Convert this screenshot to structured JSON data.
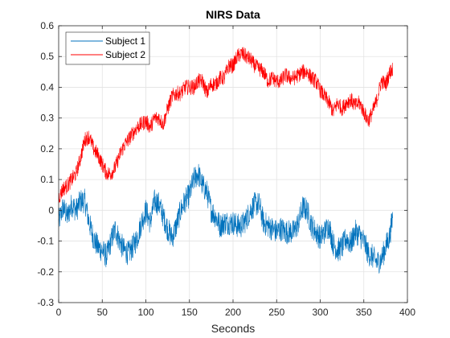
{
  "chart_data": {
    "type": "line",
    "title": "NIRS Data",
    "xlabel": "Seconds",
    "ylabel": "",
    "xlim": [
      0,
      400
    ],
    "ylim": [
      -0.3,
      0.6
    ],
    "xticks": [
      0,
      50,
      100,
      150,
      200,
      250,
      300,
      350,
      400
    ],
    "yticks": [
      -0.3,
      -0.2,
      -0.1,
      0,
      0.1,
      0.2,
      0.3,
      0.4,
      0.5,
      0.6
    ],
    "xtick_labels": [
      "0",
      "50",
      "100",
      "150",
      "200",
      "250",
      "300",
      "350",
      "400"
    ],
    "ytick_labels": [
      "-0.3",
      "-0.2",
      "-0.1",
      "0",
      "0.1",
      "0.2",
      "0.3",
      "0.4",
      "0.5",
      "0.6"
    ],
    "grid": true,
    "legend_position": "top-left",
    "series": [
      {
        "name": "Subject 1",
        "color": "#0072BD",
        "noise_amplitude": 0.04,
        "x": [
          0,
          5,
          10,
          15,
          20,
          25,
          30,
          35,
          40,
          45,
          50,
          55,
          60,
          65,
          70,
          75,
          80,
          85,
          90,
          95,
          100,
          105,
          110,
          115,
          120,
          125,
          130,
          135,
          140,
          145,
          150,
          155,
          160,
          165,
          170,
          175,
          180,
          185,
          190,
          195,
          200,
          205,
          210,
          215,
          220,
          225,
          230,
          235,
          240,
          245,
          250,
          255,
          260,
          265,
          270,
          275,
          280,
          285,
          290,
          295,
          300,
          305,
          310,
          315,
          320,
          325,
          330,
          335,
          340,
          345,
          350,
          355,
          360,
          365,
          370,
          375,
          380,
          383
        ],
        "y": [
          -0.04,
          0.01,
          -0.02,
          0.02,
          0.0,
          0.03,
          0.03,
          -0.04,
          -0.09,
          -0.12,
          -0.13,
          -0.15,
          -0.1,
          -0.06,
          -0.1,
          -0.13,
          -0.14,
          -0.12,
          -0.09,
          -0.04,
          0.0,
          -0.04,
          0.03,
          0.02,
          -0.02,
          -0.06,
          -0.09,
          -0.05,
          0.0,
          0.03,
          0.05,
          0.1,
          0.12,
          0.08,
          0.06,
          0.0,
          -0.02,
          -0.05,
          -0.04,
          -0.04,
          -0.04,
          -0.05,
          -0.05,
          -0.03,
          0.0,
          0.02,
          0.02,
          -0.04,
          -0.05,
          -0.06,
          -0.07,
          -0.06,
          -0.07,
          -0.07,
          -0.07,
          -0.04,
          0.01,
          0.0,
          -0.05,
          -0.07,
          -0.09,
          -0.07,
          -0.05,
          -0.11,
          -0.13,
          -0.12,
          -0.09,
          -0.11,
          -0.07,
          -0.08,
          -0.1,
          -0.14,
          -0.15,
          -0.17,
          -0.16,
          -0.12,
          -0.08,
          -0.02
        ]
      },
      {
        "name": "Subject 2",
        "color": "#FF0000",
        "noise_amplitude": 0.025,
        "x": [
          0,
          5,
          10,
          15,
          20,
          25,
          30,
          35,
          40,
          45,
          50,
          55,
          60,
          65,
          70,
          75,
          80,
          85,
          90,
          95,
          100,
          105,
          110,
          115,
          120,
          125,
          130,
          135,
          140,
          145,
          150,
          155,
          160,
          165,
          170,
          175,
          180,
          185,
          190,
          195,
          200,
          205,
          210,
          215,
          220,
          225,
          230,
          235,
          240,
          245,
          250,
          255,
          260,
          265,
          270,
          275,
          280,
          285,
          290,
          295,
          300,
          305,
          310,
          315,
          320,
          325,
          330,
          335,
          340,
          345,
          350,
          355,
          360,
          365,
          370,
          375,
          380,
          383
        ],
        "y": [
          0.04,
          0.07,
          0.08,
          0.1,
          0.12,
          0.17,
          0.23,
          0.24,
          0.2,
          0.18,
          0.15,
          0.12,
          0.12,
          0.14,
          0.18,
          0.21,
          0.23,
          0.25,
          0.27,
          0.28,
          0.29,
          0.27,
          0.3,
          0.3,
          0.28,
          0.33,
          0.37,
          0.38,
          0.38,
          0.4,
          0.4,
          0.4,
          0.42,
          0.42,
          0.38,
          0.41,
          0.41,
          0.43,
          0.43,
          0.47,
          0.47,
          0.5,
          0.51,
          0.5,
          0.49,
          0.47,
          0.46,
          0.45,
          0.42,
          0.43,
          0.42,
          0.42,
          0.44,
          0.43,
          0.43,
          0.44,
          0.45,
          0.45,
          0.43,
          0.42,
          0.39,
          0.37,
          0.35,
          0.32,
          0.35,
          0.33,
          0.35,
          0.36,
          0.34,
          0.35,
          0.32,
          0.29,
          0.32,
          0.36,
          0.42,
          0.41,
          0.45,
          0.46
        ]
      }
    ]
  }
}
